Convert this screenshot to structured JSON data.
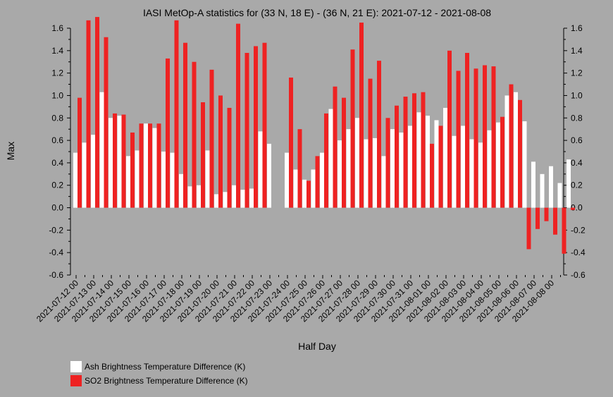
{
  "chart_data": {
    "type": "bar",
    "title": "IASI MetOp-A statistics for (33 N, 18 E) - (36 N, 21 E): 2021-07-12 - 2021-08-08",
    "xlabel": "Half Day",
    "ylabel": "Max",
    "ylim": [
      -0.6,
      1.6
    ],
    "yticks": [
      "-0.6",
      "-0.4",
      "-0.2",
      "0.0",
      "0.2",
      "0.4",
      "0.6",
      "0.8",
      "1.0",
      "1.2",
      "1.4",
      "1.6"
    ],
    "ytick_values": [
      -0.6,
      -0.4,
      -0.2,
      0.0,
      0.2,
      0.4,
      0.6,
      0.8,
      1.0,
      1.2,
      1.4,
      1.6
    ],
    "grid": false,
    "legend_position": "bottom-left",
    "xtick_labels": [
      "2021-07-12 00",
      "2021-07-13 00",
      "2021-07-14 00",
      "2021-07-15 00",
      "2021-07-16 00",
      "2021-07-17 00",
      "2021-07-18 00",
      "2021-07-19 00",
      "2021-07-20 00",
      "2021-07-21 00",
      "2021-07-22 00",
      "2021-07-23 00",
      "2021-07-24 00",
      "2021-07-25 00",
      "2021-07-26 00",
      "2021-07-27 00",
      "2021-07-28 00",
      "2021-07-29 00",
      "2021-07-30 00",
      "2021-07-31 00",
      "2021-08-01 00",
      "2021-08-02 00",
      "2021-08-03 00",
      "2021-08-04 00",
      "2021-08-05 00",
      "2021-08-06 00",
      "2021-08-07 00",
      "2021-08-08 00"
    ],
    "series": [
      {
        "name": "Ash Brightness Temperature Difference (K)",
        "color": "#ffffff",
        "values": [
          0.49,
          0.58,
          0.65,
          1.03,
          0.8,
          0.82,
          0.46,
          0.51,
          0.75,
          0.71,
          0.5,
          0.49,
          0.3,
          0.19,
          0.2,
          0.51,
          0.12,
          0.14,
          0.2,
          0.16,
          0.17,
          0.68,
          0.57,
          null,
          0.49,
          0.34,
          0.25,
          0.34,
          0.49,
          0.88,
          0.6,
          0.7,
          0.8,
          0.61,
          0.62,
          0.46,
          0.7,
          0.67,
          0.73,
          0.85,
          0.82,
          0.78,
          0.89,
          0.64,
          0.73,
          0.61,
          0.58,
          0.69,
          0.76,
          1.0,
          1.03,
          0.77,
          0.41,
          0.3,
          0.37,
          0.22,
          0.43
        ]
      },
      {
        "name": "SO2 Brightness Temperature Difference (K)",
        "color": "#ee2222",
        "values": [
          0.98,
          1.67,
          1.7,
          1.52,
          0.84,
          0.83,
          0.67,
          0.75,
          0.75,
          0.75,
          1.33,
          1.67,
          1.47,
          1.3,
          0.94,
          1.23,
          1.0,
          0.89,
          1.64,
          1.38,
          1.44,
          1.47,
          null,
          null,
          1.16,
          0.7,
          0.24,
          0.46,
          0.84,
          1.08,
          0.98,
          1.41,
          1.65,
          1.15,
          1.31,
          0.8,
          0.91,
          0.99,
          1.02,
          1.03,
          0.57,
          0.73,
          1.4,
          1.22,
          1.38,
          1.24,
          1.27,
          1.26,
          0.81,
          1.1,
          0.96,
          -0.37,
          -0.19,
          -0.12,
          -0.24,
          -0.41,
          -0.02
        ]
      }
    ]
  }
}
